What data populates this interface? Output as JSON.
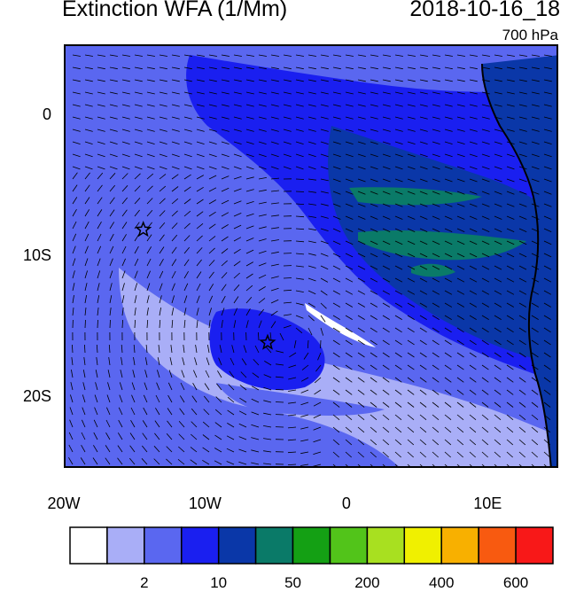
{
  "title": {
    "left": "Extinction WFA (1/Mm)",
    "right": "2018-10-16_18"
  },
  "level": "700 hPa",
  "axes": {
    "y_labels": [
      {
        "text": "0",
        "lat": 0
      },
      {
        "text": "10S",
        "lat": -10
      },
      {
        "text": "20S",
        "lat": -20
      }
    ],
    "x_labels": [
      {
        "text": "20W",
        "lon": -20
      },
      {
        "text": "10W",
        "lon": -10
      },
      {
        "text": "0",
        "lon": 0
      },
      {
        "text": "10E",
        "lon": 10
      }
    ]
  },
  "extent": {
    "lon_min": -20,
    "lon_max": 15,
    "lat_min": -25,
    "lat_max": 5
  },
  "colorbar": {
    "colors": [
      "#ffffff",
      "#a9aef7",
      "#5a67f0",
      "#1a1ff0",
      "#0a37a8",
      "#0a7a68",
      "#14a014",
      "#52c41a",
      "#a8e020",
      "#f0f000",
      "#f8b000",
      "#f85a10",
      "#f81818"
    ],
    "labels": [
      {
        "text": "2",
        "after_box": 1
      },
      {
        "text": "10",
        "after_box": 3
      },
      {
        "text": "50",
        "after_box": 5
      },
      {
        "text": "200",
        "after_box": 7
      },
      {
        "text": "400",
        "after_box": 9
      },
      {
        "text": "600",
        "after_box": 11
      }
    ]
  },
  "markers": [
    {
      "name": "star-marker-1",
      "lon": -14.5,
      "lat": -8
    },
    {
      "name": "star-marker-2",
      "lon": -5.7,
      "lat": -16
    }
  ]
}
